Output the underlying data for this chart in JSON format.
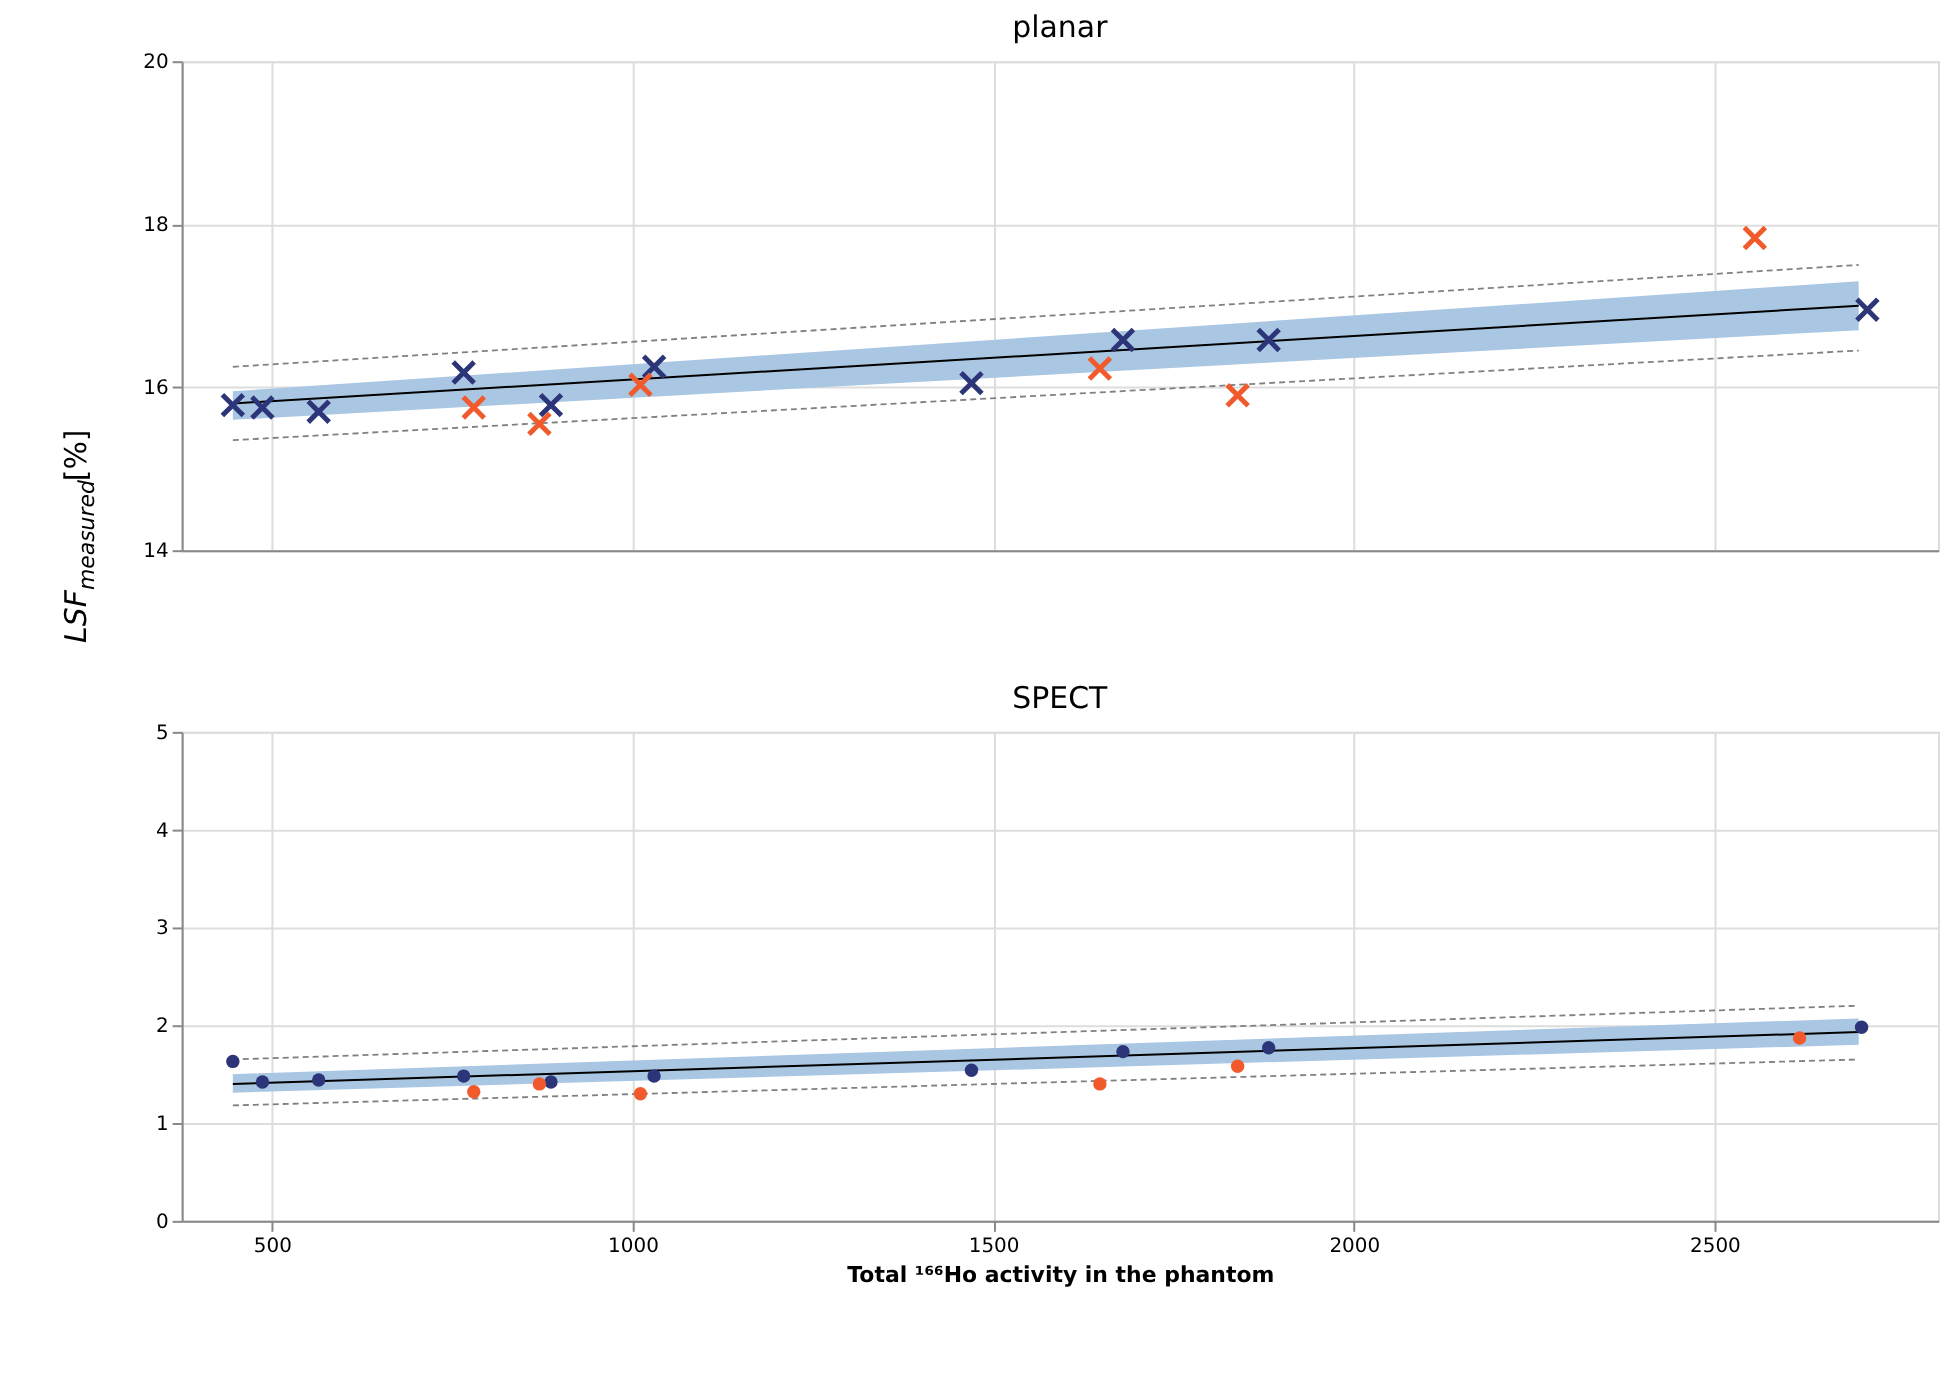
{
  "chart_data": [
    {
      "type": "scatter",
      "title": "planar",
      "ylabel": "LSF$_{measured}$[%]",
      "xlim": [
        375,
        2810
      ],
      "xticks": [
        500,
        1000,
        1500,
        2000,
        2500
      ],
      "ylim": [
        14,
        20
      ],
      "yticks": [
        14,
        16,
        18,
        20
      ],
      "grid": true,
      "tick_labels": "y",
      "series": [
        {
          "type": "line",
          "color": "#808080",
          "line_style": "dashed",
          "x": [
            446,
            2700
          ],
          "values": [
            16.25,
            17.5
          ]
        },
        {
          "type": "line",
          "color": "#808080",
          "line_style": "dashed",
          "x": [
            446,
            2700
          ],
          "values": [
            15.35,
            16.45
          ]
        },
        {
          "type": "line",
          "color": "#000000",
          "line_style": "solid",
          "x": [
            446,
            2700
          ],
          "values": [
            15.8,
            17.0
          ],
          "lower": [
            15.6,
            16.7
          ],
          "upper": [
            15.95,
            17.3
          ]
        },
        {
          "marker": "cross",
          "color": "#2b3578",
          "x": [
            446,
            487,
            565,
            766,
            887,
            1030,
            1470,
            1680,
            1882,
            2712
          ],
          "values": [
            15.78,
            15.75,
            15.7,
            16.18,
            15.78,
            16.25,
            16.05,
            16.58,
            16.58,
            16.95
          ]
        },
        {
          "marker": "cross",
          "color": "#f05a2d",
          "x": [
            780,
            871,
            1011,
            1648,
            1839,
            2556
          ],
          "values": [
            15.75,
            15.55,
            16.03,
            16.23,
            15.9,
            17.83
          ]
        }
      ]
    },
    {
      "type": "scatter",
      "title": "SPECT",
      "xlabel": "Total ¹⁶⁶Ho activity in the phantom",
      "xlim": [
        375,
        2810
      ],
      "xticks": [
        500,
        1000,
        1500,
        2000,
        2500
      ],
      "ylim": [
        0,
        5
      ],
      "yticks": [
        0,
        1,
        2,
        3,
        4,
        5
      ],
      "grid": true,
      "series": [
        {
          "type": "line",
          "color": "#808080",
          "line_style": "dashed",
          "x": [
            446,
            2700
          ],
          "values": [
            1.65,
            2.2
          ]
        },
        {
          "type": "line",
          "color": "#808080",
          "line_style": "dashed",
          "x": [
            446,
            2700
          ],
          "values": [
            1.18,
            1.65
          ]
        },
        {
          "type": "line",
          "color": "#000000",
          "line_style": "solid",
          "x": [
            446,
            2700
          ],
          "values": [
            1.4,
            1.93
          ],
          "lower": [
            1.31,
            1.8
          ],
          "upper": [
            1.5,
            2.07
          ]
        },
        {
          "marker": "circle",
          "color": "#2b3578",
          "x": [
            446,
            487,
            565,
            766,
            887,
            1030,
            1470,
            1680,
            1882,
            2704
          ],
          "values": [
            1.63,
            1.42,
            1.44,
            1.48,
            1.42,
            1.48,
            1.54,
            1.73,
            1.77,
            1.98
          ]
        },
        {
          "marker": "circle",
          "color": "#f05a2d",
          "x": [
            780,
            871,
            1011,
            1648,
            1839,
            2618
          ],
          "values": [
            1.32,
            1.4,
            1.3,
            1.4,
            1.58,
            1.87
          ]
        }
      ]
    }
  ]
}
